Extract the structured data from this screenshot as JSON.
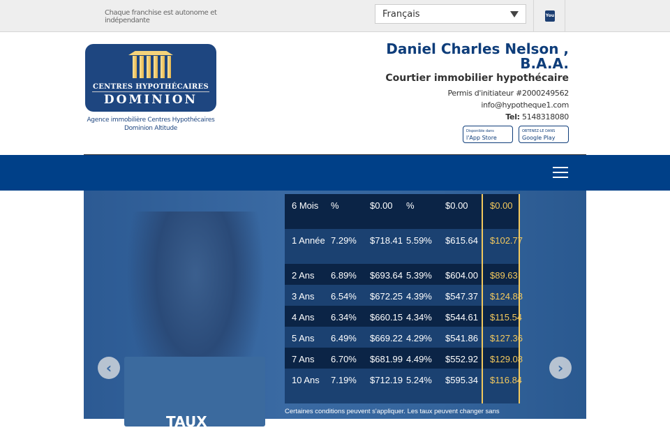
{
  "topbar": {
    "tagline": "Chaque franchise est autonome et indépendante",
    "language": "Français",
    "social_icon": "youtube-icon",
    "social_label": "You"
  },
  "logo": {
    "line1": "CENTRES HYPOTHÉCAIRES",
    "line2": "DOMINION",
    "agency": "Agence immobilière Centres Hypothécaires Dominion Altitude"
  },
  "broker": {
    "name": "Daniel Charles Nelson , B.A.A.",
    "title": "Courtier immobilier hypothécaire",
    "permit": "Permis d'initiateur #2000249562",
    "email": "info@hypotheque1.com",
    "tel_label": "Tel:",
    "tel": "5148318080"
  },
  "stores": {
    "apple_small": "Disponible dans",
    "apple": "l'App Store",
    "google_small": "OBTENEZ-LE DANS",
    "google": "Google Play"
  },
  "colors": {
    "brand": "#004088",
    "accent": "#f4c95d"
  },
  "rates": [
    [
      "6 Mois",
      "%",
      "$0.00",
      "%",
      "$0.00",
      "$0.00"
    ],
    [
      "1 Année",
      "7.29%",
      "$718.41",
      "5.59%",
      "$615.64",
      "$102.77"
    ],
    [
      "2 Ans",
      "6.89%",
      "$693.64",
      "5.39%",
      "$604.00",
      "$89.63"
    ],
    [
      "3 Ans",
      "6.54%",
      "$672.25",
      "4.39%",
      "$547.37",
      "$124.88"
    ],
    [
      "4 Ans",
      "6.34%",
      "$660.15",
      "4.34%",
      "$544.61",
      "$115.54"
    ],
    [
      "5 Ans",
      "6.49%",
      "$669.22",
      "4.29%",
      "$541.86",
      "$127.36"
    ],
    [
      "7 Ans",
      "6.70%",
      "$681.99",
      "4.49%",
      "$552.92",
      "$129.08"
    ],
    [
      "10 Ans",
      "7.19%",
      "$712.19",
      "5.24%",
      "$595.34",
      "$116.84"
    ]
  ],
  "note": "Certaines conditions peuvent s'appliquer. Les taux peuvent changer sans",
  "hero_heading": "TAUX"
}
